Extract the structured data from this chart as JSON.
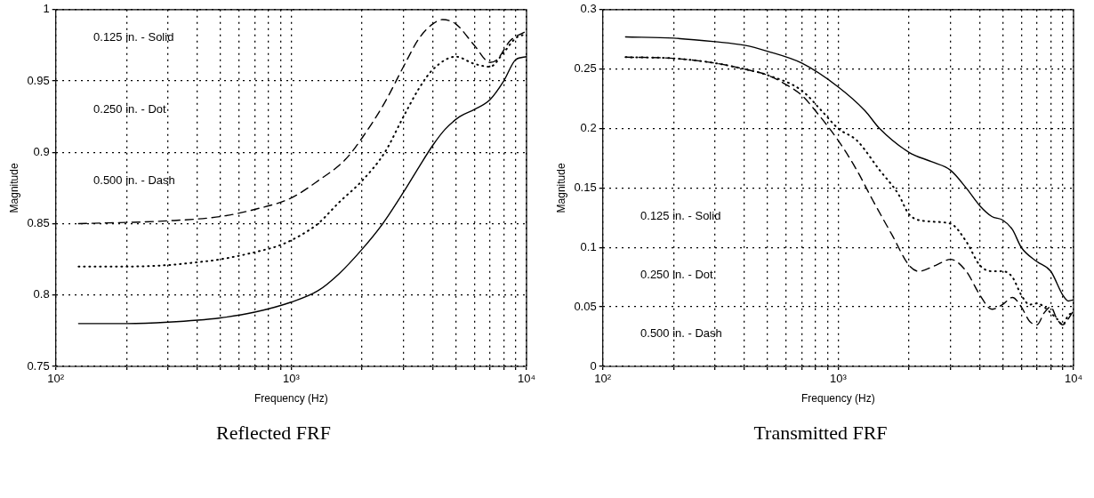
{
  "chart_data": [
    {
      "type": "line",
      "title": "Reflected FRF",
      "xlabel": "Frequency (Hz)",
      "ylabel": "Magnitude",
      "log": "x",
      "grid": true,
      "legend": false,
      "marker": "none",
      "annotations": [
        "0.125 in. - Solid",
        "0.250 in. - Dot",
        "0.500 in. - Dash"
      ],
      "xlim": [
        100,
        10000
      ],
      "ylim": [
        0.75,
        1
      ],
      "yticks": [
        0.75,
        0.8,
        0.85,
        0.9,
        0.95,
        1
      ],
      "xticks": [
        {
          "value": 100,
          "label": "10²"
        },
        {
          "value": 200,
          "label": null
        },
        {
          "value": 300,
          "label": null
        },
        {
          "value": 400,
          "label": null
        },
        {
          "value": 500,
          "label": null
        },
        {
          "value": 600,
          "label": null
        },
        {
          "value": 700,
          "label": null
        },
        {
          "value": 800,
          "label": null
        },
        {
          "value": 900,
          "label": null
        },
        {
          "value": 1000,
          "label": "10³"
        },
        {
          "value": 2000,
          "label": null
        },
        {
          "value": 3000,
          "label": null
        },
        {
          "value": 4000,
          "label": null
        },
        {
          "value": 5000,
          "label": null
        },
        {
          "value": 6000,
          "label": null
        },
        {
          "value": 7000,
          "label": null
        },
        {
          "value": 8000,
          "label": null
        },
        {
          "value": 9000,
          "label": null
        },
        {
          "value": 10000,
          "label": "10⁴"
        }
      ],
      "series": [
        {
          "color": "#000000",
          "line_style": "solid",
          "x": [
            125,
            200,
            300,
            500,
            700,
            1000,
            1300,
            1600,
            2000,
            2450,
            3000,
            3500,
            4000,
            4500,
            5200,
            6000,
            7000,
            8000,
            9000,
            10000
          ],
          "values": [
            0.78,
            0.78,
            0.781,
            0.784,
            0.788,
            0.795,
            0.803,
            0.815,
            0.832,
            0.85,
            0.872,
            0.89,
            0.905,
            0.916,
            0.925,
            0.93,
            0.937,
            0.95,
            0.965,
            0.967
          ]
        },
        {
          "color": "#000000",
          "line_style": "dotted",
          "x": [
            125,
            200,
            300,
            400,
            500,
            700,
            900,
            1100,
            1300,
            1600,
            2000,
            2500,
            3000,
            3500,
            4000,
            5000,
            6000,
            7000,
            8000,
            9000,
            10000
          ],
          "values": [
            0.82,
            0.82,
            0.821,
            0.823,
            0.825,
            0.83,
            0.835,
            0.842,
            0.85,
            0.865,
            0.88,
            0.9,
            0.925,
            0.945,
            0.958,
            0.967,
            0.962,
            0.96,
            0.97,
            0.98,
            0.983
          ]
        },
        {
          "color": "#000000",
          "line_style": "dashed",
          "x": [
            125,
            300,
            500,
            700,
            1000,
            1300,
            1700,
            2000,
            2500,
            3000,
            3500,
            4000,
            4400,
            5000,
            6000,
            7000,
            7500,
            8500,
            10000
          ],
          "values": [
            0.85,
            0.852,
            0.855,
            0.86,
            0.868,
            0.88,
            0.895,
            0.91,
            0.935,
            0.96,
            0.98,
            0.99,
            0.993,
            0.99,
            0.975,
            0.963,
            0.965,
            0.978,
            0.985
          ]
        }
      ]
    },
    {
      "type": "line",
      "title": "Transmitted FRF",
      "xlabel": "Frequency (Hz)",
      "ylabel": "Magnitude",
      "log": "x",
      "grid": true,
      "legend": false,
      "marker": "none",
      "annotations": [
        "0.125 in. - Solid",
        "0.250 in. - Dot",
        "0.500 in. - Dash"
      ],
      "xlim": [
        100,
        10000
      ],
      "ylim": [
        0,
        0.3
      ],
      "yticks": [
        0,
        0.05,
        0.1,
        0.15,
        0.2,
        0.25,
        0.3
      ],
      "xticks": [
        {
          "value": 100,
          "label": "10²"
        },
        {
          "value": 200,
          "label": null
        },
        {
          "value": 300,
          "label": null
        },
        {
          "value": 400,
          "label": null
        },
        {
          "value": 500,
          "label": null
        },
        {
          "value": 600,
          "label": null
        },
        {
          "value": 700,
          "label": null
        },
        {
          "value": 800,
          "label": null
        },
        {
          "value": 900,
          "label": null
        },
        {
          "value": 1000,
          "label": "10³"
        },
        {
          "value": 2000,
          "label": null
        },
        {
          "value": 3000,
          "label": null
        },
        {
          "value": 4000,
          "label": null
        },
        {
          "value": 5000,
          "label": null
        },
        {
          "value": 6000,
          "label": null
        },
        {
          "value": 7000,
          "label": null
        },
        {
          "value": 8000,
          "label": null
        },
        {
          "value": 9000,
          "label": null
        },
        {
          "value": 10000,
          "label": "10⁴"
        }
      ],
      "series": [
        {
          "color": "#000000",
          "line_style": "solid",
          "x": [
            125,
            200,
            300,
            400,
            500,
            700,
            1000,
            1300,
            1500,
            2000,
            2500,
            3000,
            3500,
            4000,
            4500,
            5000,
            5500,
            6000,
            7000,
            8000,
            9000,
            9500,
            10000
          ],
          "values": [
            0.277,
            0.276,
            0.273,
            0.27,
            0.265,
            0.255,
            0.235,
            0.215,
            0.2,
            0.18,
            0.172,
            0.165,
            0.15,
            0.135,
            0.126,
            0.123,
            0.115,
            0.1,
            0.088,
            0.08,
            0.06,
            0.055,
            0.056
          ]
        },
        {
          "color": "#000000",
          "line_style": "dotted",
          "x": [
            125,
            200,
            300,
            400,
            500,
            700,
            850,
            1000,
            1200,
            1500,
            1800,
            2000,
            2400,
            3000,
            3500,
            4000,
            4500,
            5000,
            5500,
            6000,
            6500,
            7000,
            7500,
            8000,
            8500,
            9000,
            9500,
            10000
          ],
          "values": [
            0.26,
            0.259,
            0.255,
            0.25,
            0.245,
            0.232,
            0.215,
            0.2,
            0.19,
            0.165,
            0.145,
            0.128,
            0.122,
            0.12,
            0.105,
            0.085,
            0.08,
            0.08,
            0.075,
            0.06,
            0.052,
            0.053,
            0.05,
            0.045,
            0.04,
            0.035,
            0.043,
            0.045
          ]
        },
        {
          "color": "#000000",
          "line_style": "dashed",
          "x": [
            125,
            200,
            300,
            400,
            500,
            600,
            700,
            800,
            1000,
            1200,
            1400,
            1700,
            2000,
            2200,
            2600,
            3000,
            3500,
            4000,
            4500,
            5000,
            5500,
            6000,
            6500,
            7000,
            7500,
            8000,
            8500,
            9000,
            9500,
            10000
          ],
          "values": [
            0.26,
            0.259,
            0.255,
            0.25,
            0.245,
            0.237,
            0.228,
            0.215,
            0.19,
            0.165,
            0.14,
            0.11,
            0.085,
            0.08,
            0.085,
            0.09,
            0.08,
            0.06,
            0.048,
            0.052,
            0.058,
            0.05,
            0.038,
            0.035,
            0.045,
            0.05,
            0.04,
            0.035,
            0.04,
            0.047
          ]
        }
      ]
    }
  ]
}
